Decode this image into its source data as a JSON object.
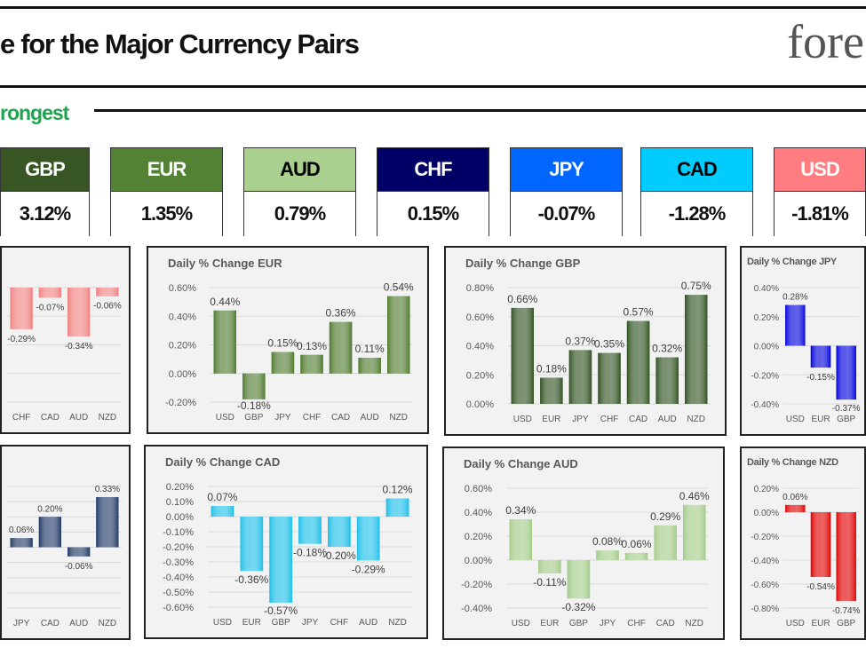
{
  "header": {
    "title": "e for the Major Currency Pairs",
    "logo_text": "fore",
    "ranking_label": "rongest"
  },
  "strength": [
    {
      "currency": "GBP",
      "change": "3.12%",
      "bg": "#375623",
      "fg": "#ffffff"
    },
    {
      "currency": "EUR",
      "change": "1.35%",
      "bg": "#548235",
      "fg": "#ffffff"
    },
    {
      "currency": "AUD",
      "change": "0.79%",
      "bg": "#a9d08e",
      "fg": "#000000"
    },
    {
      "currency": "CHF",
      "change": "0.15%",
      "bg": "#000066",
      "fg": "#ffffff"
    },
    {
      "currency": "JPY",
      "change": "-0.07%",
      "bg": "#0066ff",
      "fg": "#ffffff"
    },
    {
      "currency": "CAD",
      "change": "-1.28%",
      "bg": "#00ccff",
      "fg": "#000000"
    },
    {
      "currency": "USD",
      "change": "-1.81%",
      "bg": "#ff7c80",
      "fg": "#ffffff"
    }
  ],
  "chart_data": [
    {
      "type": "bar",
      "title": "",
      "color": "#f08080",
      "categories": [
        "CHF",
        "CAD",
        "AUD",
        "NZD"
      ],
      "values": [
        -0.29,
        -0.07,
        -0.34,
        -0.06
      ],
      "labels": [
        "-0.29%",
        "-0.07%",
        "-0.34%",
        "-0.06%"
      ],
      "ylim": [
        -0.8,
        0
      ],
      "ystep": 0.2,
      "show_yaxis": false,
      "grid": true
    },
    {
      "type": "bar",
      "title": "Daily % Change EUR",
      "color": "#4e7a2e",
      "categories": [
        "USD",
        "GBP",
        "JPY",
        "CHF",
        "CAD",
        "AUD",
        "NZD"
      ],
      "values": [
        0.44,
        -0.18,
        0.15,
        0.13,
        0.36,
        0.11,
        0.54
      ],
      "labels": [
        "0.44%",
        "-0.18%",
        "0.15%",
        "0.13%",
        "0.36%",
        "0.11%",
        "0.54%"
      ],
      "ylim": [
        -0.2,
        0.6
      ],
      "ystep": 0.2,
      "yticks": [
        "-0.20%",
        "0.00%",
        "0.20%",
        "0.40%",
        "0.60%"
      ],
      "show_yaxis": true,
      "grid": true
    },
    {
      "type": "bar",
      "title": "Daily % Change GBP",
      "color": "#2f5220",
      "categories": [
        "USD",
        "EUR",
        "JPY",
        "CHF",
        "CAD",
        "AUD",
        "NZD"
      ],
      "values": [
        0.66,
        0.18,
        0.37,
        0.35,
        0.57,
        0.32,
        0.75
      ],
      "labels": [
        "0.66%",
        "0.18%",
        "0.37%",
        "0.35%",
        "0.57%",
        "0.32%",
        "0.75%"
      ],
      "ylim": [
        0,
        0.8
      ],
      "ystep": 0.2,
      "yticks": [
        "0.00%",
        "0.20%",
        "0.40%",
        "0.60%",
        "0.80%"
      ],
      "show_yaxis": true,
      "grid": true
    },
    {
      "type": "bar",
      "title": "Daily % Change JPY",
      "color": "#0000dd",
      "categories": [
        "USD",
        "EUR",
        "GBP"
      ],
      "values": [
        0.28,
        -0.15,
        -0.37
      ],
      "labels": [
        "0.28%",
        "-0.15%",
        "-0.37%"
      ],
      "ylim": [
        -0.4,
        0.4
      ],
      "ystep": 0.2,
      "yticks": [
        "-0.40%",
        "-0.20%",
        "0.00%",
        "0.20%",
        "0.40%"
      ],
      "show_yaxis": true,
      "grid": true
    },
    {
      "type": "bar",
      "title": "",
      "color": "#1f3864",
      "categories": [
        "JPY",
        "CAD",
        "AUD",
        "NZD"
      ],
      "values": [
        0.06,
        0.2,
        -0.06,
        0.33
      ],
      "labels": [
        "0.06%",
        "0.20%",
        "-0.06%",
        "0.33%"
      ],
      "ylim": [
        -0.4,
        0.4
      ],
      "ystep": 0.1,
      "show_yaxis": false,
      "grid": true
    },
    {
      "type": "bar",
      "title": "Daily % Change CAD",
      "color": "#1cbfe8",
      "categories": [
        "USD",
        "EUR",
        "GBP",
        "JPY",
        "CHF",
        "AUD",
        "NZD"
      ],
      "values": [
        0.07,
        -0.36,
        -0.57,
        -0.18,
        -0.2,
        -0.29,
        0.12
      ],
      "labels": [
        "0.07%",
        "-0.36%",
        "-0.57%",
        "-0.18%",
        "-0.20%",
        "-0.29%",
        "0.12%"
      ],
      "ylim": [
        -0.6,
        0.2
      ],
      "ystep": 0.1,
      "yticks": [
        "-0.60%",
        "-0.50%",
        "-0.40%",
        "-0.30%",
        "-0.20%",
        "-0.10%",
        "0.00%",
        "0.10%",
        "0.20%"
      ],
      "show_yaxis": true,
      "grid": true
    },
    {
      "type": "bar",
      "title": "Daily % Change AUD",
      "color": "#a3cc88",
      "categories": [
        "USD",
        "EUR",
        "GBP",
        "JPY",
        "CHF",
        "CAD",
        "NZD"
      ],
      "values": [
        0.34,
        -0.11,
        -0.32,
        0.08,
        0.06,
        0.29,
        0.46
      ],
      "labels": [
        "0.34%",
        "-0.11%",
        "-0.32%",
        "0.08%",
        "0.06%",
        "0.29%",
        "0.46%"
      ],
      "ylim": [
        -0.4,
        0.6
      ],
      "ystep": 0.2,
      "yticks": [
        "-0.40%",
        "-0.20%",
        "0.00%",
        "0.20%",
        "0.40%",
        "0.60%"
      ],
      "show_yaxis": true,
      "grid": true
    },
    {
      "type": "bar",
      "title": "Daily % Change NZD",
      "color": "#e00000",
      "categories": [
        "USD",
        "EUR",
        "GBP"
      ],
      "values": [
        0.06,
        -0.54,
        -0.74
      ],
      "labels": [
        "0.06%",
        "-0.54%",
        "-0.74%"
      ],
      "ylim": [
        -0.8,
        0.2
      ],
      "ystep": 0.2,
      "yticks": [
        "-0.80%",
        "-0.60%",
        "-0.40%",
        "-0.20%",
        "0.00%",
        "0.20%"
      ],
      "show_yaxis": true,
      "grid": true
    }
  ]
}
